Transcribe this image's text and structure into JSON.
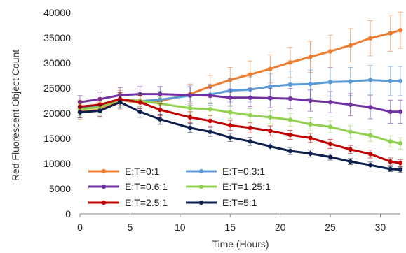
{
  "chart_data": {
    "type": "line",
    "xlabel": "Time (Hours)",
    "ylabel": "Red Fluorescent Object Count",
    "xlim": [
      0,
      32
    ],
    "ylim": [
      0,
      40000
    ],
    "x_ticks": [
      "0",
      "5",
      "10",
      "15",
      "20",
      "25",
      "30"
    ],
    "y_ticks": [
      "0",
      "5000",
      "10000",
      "15000",
      "20000",
      "25000",
      "30000",
      "35000",
      "40000"
    ],
    "x": [
      0,
      2,
      4,
      6,
      8,
      11,
      13,
      15,
      17,
      19,
      21,
      23,
      25,
      27,
      29,
      31,
      32
    ],
    "series": [
      {
        "name": "E:T=0:1",
        "color": "#ED7D31",
        "values": [
          20300,
          20700,
          22600,
          22100,
          22400,
          23800,
          25300,
          26600,
          27700,
          28800,
          30100,
          31200,
          32300,
          33500,
          34900,
          35900,
          36500
        ],
        "errors": [
          1500,
          1500,
          1900,
          1600,
          1600,
          2000,
          2200,
          2500,
          2700,
          2800,
          3000,
          3100,
          3200,
          3300,
          3500,
          3600,
          3600
        ]
      },
      {
        "name": "E:T=0.3:1",
        "color": "#5B9BD5",
        "values": [
          20900,
          21500,
          22600,
          22400,
          22700,
          23500,
          23700,
          24500,
          24700,
          25300,
          25700,
          25800,
          26200,
          26300,
          26600,
          26400,
          26400
        ],
        "errors": [
          1300,
          1400,
          1500,
          1500,
          1700,
          1900,
          2100,
          2300,
          2500,
          2600,
          2700,
          2800,
          2800,
          2800,
          2900,
          2900,
          2900
        ]
      },
      {
        "name": "E:T=0.6:1",
        "color": "#7030A0",
        "values": [
          22200,
          22800,
          23600,
          23800,
          23800,
          23600,
          23500,
          23100,
          23100,
          23000,
          22900,
          22500,
          22200,
          21700,
          21200,
          20300,
          20300
        ],
        "errors": [
          1300,
          1400,
          1500,
          1500,
          1500,
          1600,
          1600,
          1700,
          1800,
          1900,
          2000,
          2100,
          2100,
          2200,
          2300,
          2300,
          2300
        ]
      },
      {
        "name": "E:T=1.25:1",
        "color": "#92D050",
        "values": [
          20800,
          21200,
          22700,
          22500,
          21900,
          21000,
          20800,
          20200,
          19600,
          19200,
          18700,
          17800,
          17300,
          16300,
          15600,
          14400,
          14000
        ],
        "errors": [
          1200,
          1200,
          1300,
          1300,
          1300,
          1300,
          1300,
          1300,
          1300,
          1300,
          1300,
          1300,
          1200,
          1200,
          1200,
          1100,
          1100
        ]
      },
      {
        "name": "E:T=2.5:1",
        "color": "#C00000",
        "values": [
          21300,
          21700,
          22800,
          22200,
          20700,
          19200,
          18500,
          17600,
          17100,
          16500,
          15700,
          15100,
          13900,
          12800,
          11900,
          10400,
          10100
        ],
        "errors": [
          1200,
          1200,
          1300,
          1300,
          1200,
          1100,
          1100,
          1000,
          1000,
          1000,
          900,
          900,
          900,
          800,
          800,
          700,
          700
        ]
      },
      {
        "name": "E:T=5:1",
        "color": "#0D1F4C",
        "values": [
          20200,
          20500,
          22200,
          20300,
          18800,
          17100,
          16300,
          15200,
          14400,
          13400,
          12500,
          12000,
          11300,
          10400,
          9700,
          8900,
          8800
        ],
        "errors": [
          1100,
          1100,
          1200,
          1100,
          1000,
          900,
          900,
          800,
          800,
          700,
          700,
          700,
          600,
          600,
          600,
          500,
          500
        ]
      }
    ],
    "legend": "inside lower-left, two columns",
    "grid": false
  }
}
